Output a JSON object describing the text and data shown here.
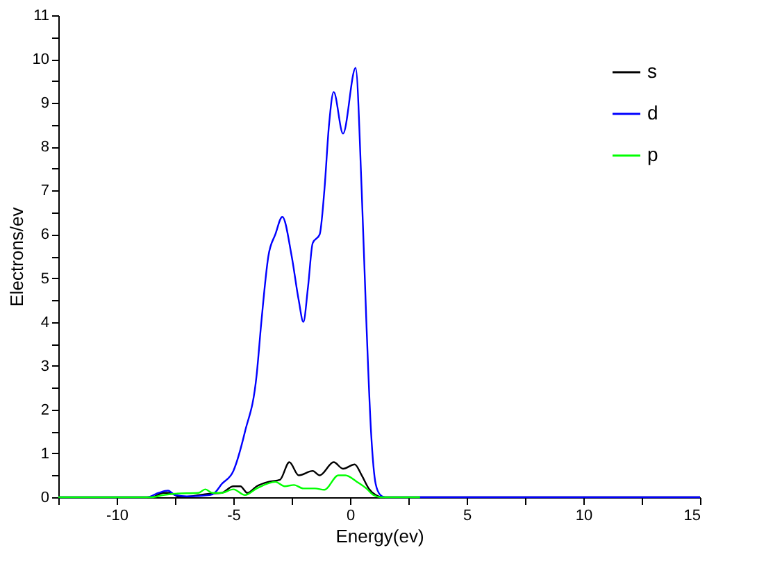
{
  "chart_data": {
    "type": "line",
    "xlabel": "Energy(ev)",
    "ylabel": "Electrons/ev",
    "xlim": [
      -12.5,
      15
    ],
    "ylim": [
      0,
      11
    ],
    "xticks": [
      {
        "value": -12.5,
        "label": null
      },
      -10,
      {
        "value": -7.5,
        "label": null
      },
      -5,
      {
        "value": -2.5,
        "label": null
      },
      0,
      {
        "value": 2.5,
        "label": null
      },
      5,
      {
        "value": 7.5,
        "label": null
      },
      10,
      {
        "value": 12.5,
        "label": null
      },
      15
    ],
    "yticks": [
      0,
      {
        "value": 0.5,
        "label": null
      },
      1,
      {
        "value": 1.5,
        "label": null
      },
      2,
      {
        "value": 2.5,
        "label": null
      },
      3,
      {
        "value": 3.5,
        "label": null
      },
      4,
      {
        "value": 4.5,
        "label": null
      },
      5,
      {
        "value": 5.5,
        "label": null
      },
      6,
      {
        "value": 6.5,
        "label": null
      },
      7,
      {
        "value": 7.5,
        "label": null
      },
      8,
      {
        "value": 8.5,
        "label": null
      },
      9,
      {
        "value": 9.5,
        "label": null
      },
      10,
      {
        "value": 10.5,
        "label": null
      },
      11
    ],
    "grid": false,
    "legend": "top right",
    "series": [
      {
        "name": "s",
        "color": "#000000",
        "x": [
          -12.5,
          -8.5,
          -8,
          -7.7,
          -7.3,
          -6,
          -5.5,
          -5,
          -4.7,
          -4.4,
          -4,
          -3.5,
          -3,
          -2.6,
          -2.2,
          -1.6,
          -1.3,
          -0.7,
          -0.3,
          0.2,
          0.5,
          0.8,
          1.1,
          1.4,
          15
        ],
        "values": [
          0,
          0,
          0.1,
          0.1,
          0,
          0.08,
          0.1,
          0.25,
          0.25,
          0.1,
          0.25,
          0.35,
          0.4,
          0.8,
          0.5,
          0.6,
          0.5,
          0.8,
          0.65,
          0.75,
          0.5,
          0.2,
          0.05,
          0,
          0
        ]
      },
      {
        "name": "d",
        "color": "#0000ff",
        "x": [
          -12.5,
          -8.7,
          -8.2,
          -7.8,
          -7.5,
          -7,
          -6,
          -5.8,
          -5.5,
          -5,
          -4.5,
          -4,
          -3.8,
          -3.5,
          -3.2,
          -2.9,
          -2.5,
          -2.2,
          -2,
          -1.8,
          -1.6,
          -1.3,
          -1.1,
          -0.9,
          -0.7,
          -0.3,
          0.24,
          0.5,
          0.7,
          0.9,
          1.1,
          1.3,
          1.5,
          15
        ],
        "values": [
          0,
          0,
          0.1,
          0.15,
          0.05,
          0.02,
          0.05,
          0.1,
          0.3,
          0.6,
          1.5,
          2.8,
          4,
          5.5,
          6,
          6.4,
          5.5,
          4.5,
          4,
          4.8,
          5.8,
          6,
          7,
          8.5,
          9.25,
          8.3,
          9.8,
          7,
          4,
          1.5,
          0.3,
          0.05,
          0,
          0
        ]
      },
      {
        "name": "p",
        "color": "#00ff00",
        "x": [
          -12.5,
          -8.5,
          -8,
          -7.5,
          -6.5,
          -6.2,
          -5.9,
          -5.5,
          -5,
          -4.5,
          -4,
          -3.2,
          -2.8,
          -2.4,
          -2,
          -1.5,
          -1.1,
          -0.5,
          -0.2,
          0.3,
          0.7,
          1,
          1.3,
          3
        ],
        "values": [
          0,
          0,
          0.05,
          0.08,
          0.1,
          0.18,
          0.1,
          0.1,
          0.18,
          0.05,
          0.2,
          0.35,
          0.25,
          0.28,
          0.2,
          0.2,
          0.17,
          0.5,
          0.5,
          0.35,
          0.2,
          0.05,
          0,
          0
        ]
      }
    ]
  }
}
